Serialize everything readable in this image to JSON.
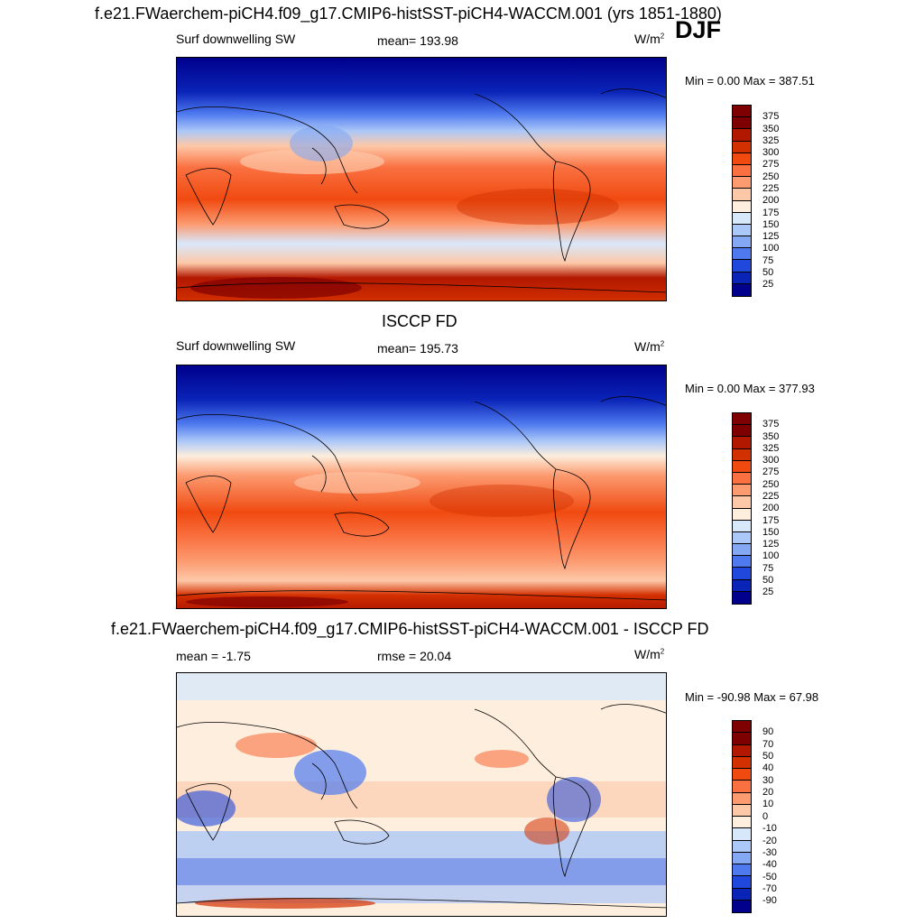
{
  "title": "f.e21.FWaerchem-piCH4.f09_g17.CMIP6-histSST-piCH4-WACCM.001 (yrs 1851-1880)",
  "season": "DJF",
  "chart_data": [
    {
      "type": "heatmap",
      "title": "",
      "left_label": "Surf downwelling SW",
      "center_label": "mean= 193.98",
      "units": "W/m",
      "units_exp": "2",
      "minmax": "Min =   0.00 Max = 387.51",
      "min": 0.0,
      "max": 387.51,
      "mean": 193.98,
      "levels": [
        "375",
        "350",
        "325",
        "300",
        "275",
        "250",
        "225",
        "200",
        "175",
        "150",
        "125",
        "100",
        "75",
        "50",
        "25"
      ],
      "colors": [
        "#7f0000",
        "#b21800",
        "#d33000",
        "#f04a10",
        "#fa7040",
        "#fc9a70",
        "#fdc8a8",
        "#fdeedd",
        "#d8e8fb",
        "#acc8f8",
        "#84a8f4",
        "#4f7aef",
        "#2048dc",
        "#0a24b8",
        "#00008c"
      ]
    },
    {
      "type": "heatmap",
      "title": "ISCCP FD",
      "left_label": "Surf downwelling SW",
      "center_label": "mean= 195.73",
      "units": "W/m",
      "units_exp": "2",
      "minmax": "Min =   0.00 Max = 377.93",
      "min": 0.0,
      "max": 377.93,
      "mean": 195.73,
      "levels": [
        "375",
        "350",
        "325",
        "300",
        "275",
        "250",
        "225",
        "200",
        "175",
        "150",
        "125",
        "100",
        "75",
        "50",
        "25"
      ],
      "colors": [
        "#7f0000",
        "#b21800",
        "#d33000",
        "#f04a10",
        "#fa7040",
        "#fc9a70",
        "#fdc8a8",
        "#fdeedd",
        "#d8e8fb",
        "#acc8f8",
        "#84a8f4",
        "#4f7aef",
        "#2048dc",
        "#0a24b8",
        "#00008c"
      ]
    },
    {
      "type": "heatmap",
      "title": "f.e21.FWaerchem-piCH4.f09_g17.CMIP6-histSST-piCH4-WACCM.001 - ISCCP FD",
      "left_label": "mean =  -1.75",
      "center_label": "rmse =  20.04",
      "units": "W/m",
      "units_exp": "2",
      "minmax": "Min = -90.98 Max =  67.98",
      "min": -90.98,
      "max": 67.98,
      "mean": -1.75,
      "rmse": 20.04,
      "levels": [
        "90",
        "70",
        "50",
        "40",
        "30",
        "20",
        "10",
        "0",
        "-10",
        "-20",
        "-30",
        "-40",
        "-50",
        "-70",
        "-90"
      ],
      "colors": [
        "#7f0000",
        "#b21800",
        "#d33000",
        "#f04a10",
        "#fa7040",
        "#fc9a70",
        "#fdc8a8",
        "#fdeedd",
        "#d8e8fb",
        "#acc8f8",
        "#84a8f4",
        "#4f7aef",
        "#2048dc",
        "#0a24b8",
        "#00008c"
      ]
    }
  ]
}
